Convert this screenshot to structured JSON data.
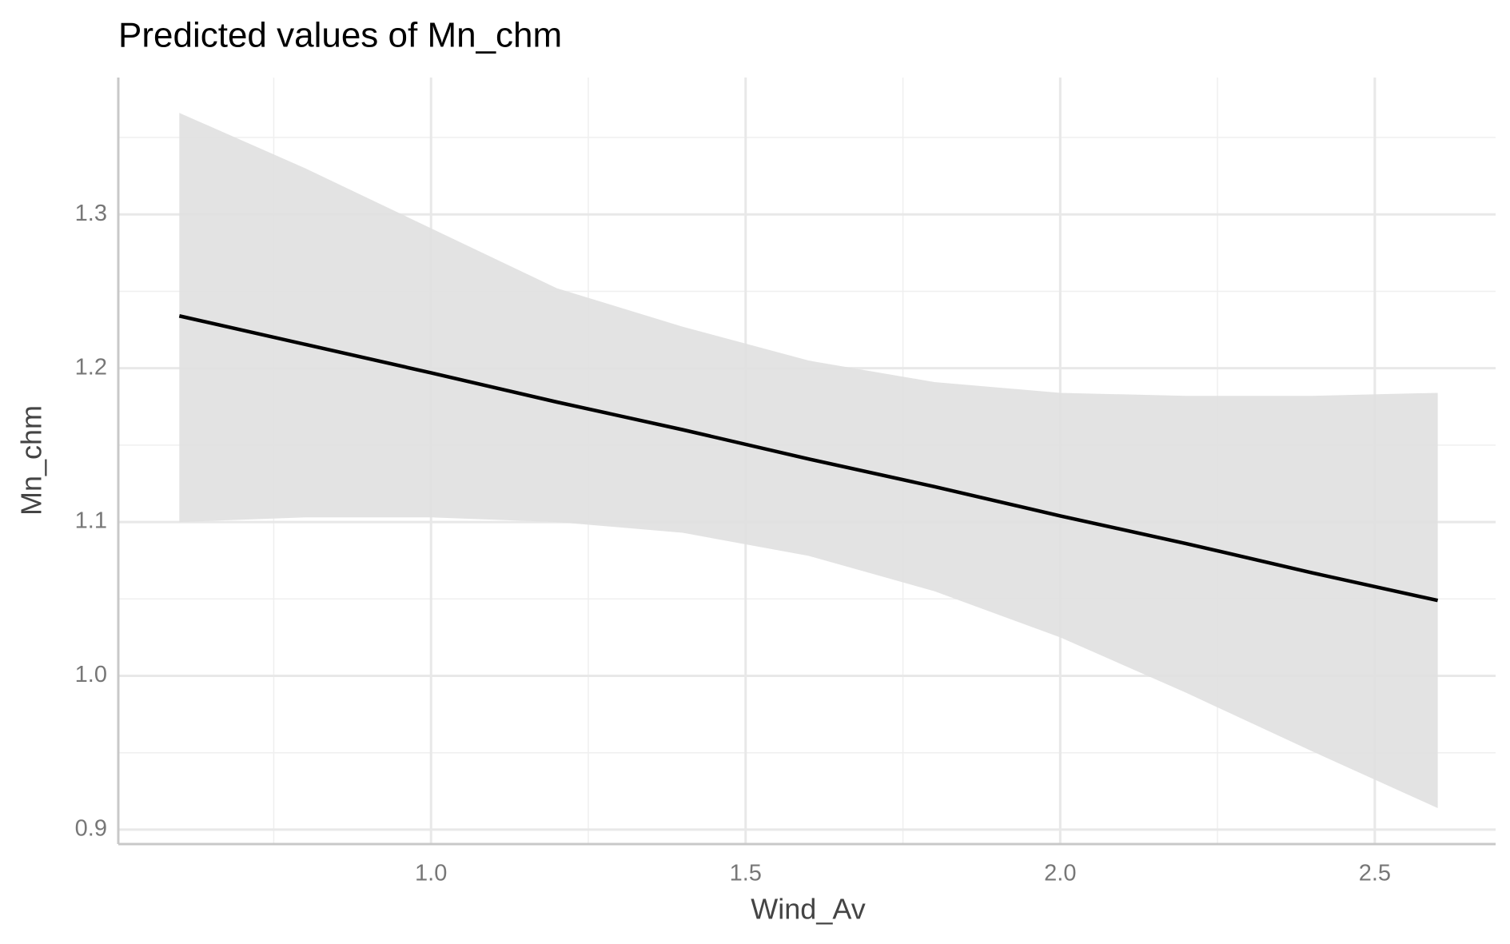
{
  "chart_data": {
    "type": "line",
    "title": "Predicted values of Mn_chm",
    "x_label": "Wind_Av",
    "y_label": "Mn_chm",
    "x": [
      0.6,
      0.8,
      1.0,
      1.2,
      1.4,
      1.6,
      1.8,
      2.0,
      2.2,
      2.4,
      2.6
    ],
    "values": [
      1.234,
      1.2155,
      1.197,
      1.178,
      1.16,
      1.141,
      1.123,
      1.104,
      1.086,
      1.067,
      1.049
    ],
    "lower": [
      1.1,
      1.103,
      1.103,
      1.1,
      1.093,
      1.078,
      1.055,
      1.025,
      0.989,
      0.951,
      0.914
    ],
    "upper": [
      1.366,
      1.33,
      1.291,
      1.252,
      1.227,
      1.205,
      1.191,
      1.184,
      1.182,
      1.182,
      1.184
    ],
    "color": "#000000",
    "ribbon_color": "#e0e0e0",
    "xlim": [
      0.503,
      2.692
    ],
    "xticks": [
      {
        "value": 1,
        "label": "1.0"
      },
      1.5,
      {
        "value": 2,
        "label": "2.0"
      },
      2.5
    ],
    "ylim": [
      0.8906,
      1.389
    ],
    "yticks": [
      0.9,
      {
        "value": 1,
        "label": "1.0"
      },
      1.1,
      1.2,
      1.3
    ],
    "grid": true
  }
}
